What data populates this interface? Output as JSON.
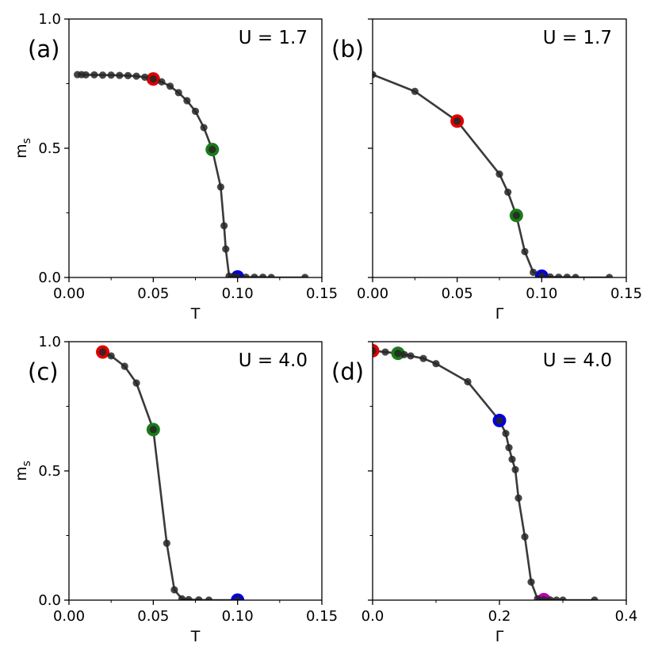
{
  "colors": {
    "line": "#3a3a3a",
    "marker": "#262626",
    "highlights": [
      "#dd0000",
      "#1a7a1a",
      "#0000dd",
      "#bb00bb"
    ]
  },
  "chart_data": [
    {
      "type": "line",
      "panel_label": "(a)",
      "param_label": "U = 1.7",
      "xlabel": "T",
      "ylabel": "m_s",
      "xlim": [
        0,
        0.15
      ],
      "ylim": [
        0,
        1.0
      ],
      "xticks": [
        "0.00",
        "0.05",
        "0.10",
        "0.15"
      ],
      "yticks": [
        "0.0",
        "0.5",
        "1.0"
      ],
      "x": [
        0.005,
        0.0075,
        0.01,
        0.015,
        0.02,
        0.025,
        0.03,
        0.035,
        0.04,
        0.045,
        0.05,
        0.055,
        0.06,
        0.065,
        0.07,
        0.075,
        0.08,
        0.085,
        0.09,
        0.092,
        0.093,
        0.095,
        0.0975,
        0.1,
        0.105,
        0.11,
        0.115,
        0.12,
        0.14
      ],
      "y": [
        0.785,
        0.785,
        0.784,
        0.784,
        0.783,
        0.783,
        0.782,
        0.781,
        0.779,
        0.775,
        0.768,
        0.757,
        0.74,
        0.715,
        0.684,
        0.643,
        0.58,
        0.495,
        0.35,
        0.2,
        0.11,
        0.005,
        0.003,
        0.002,
        0.001,
        0.001,
        0.001,
        0.0,
        0.0
      ],
      "highlights": [
        {
          "x": 0.05,
          "y": 0.768,
          "color": "#dd0000"
        },
        {
          "x": 0.085,
          "y": 0.495,
          "color": "#1a7a1a"
        },
        {
          "x": 0.1,
          "y": 0.002,
          "color": "#0000dd"
        }
      ]
    },
    {
      "type": "line",
      "panel_label": "(b)",
      "param_label": "U = 1.7",
      "xlabel": "Γ",
      "ylabel": "",
      "xlim": [
        0,
        0.15
      ],
      "ylim": [
        0,
        1.0
      ],
      "xticks": [
        "0.00",
        "0.05",
        "0.10",
        "0.15"
      ],
      "yticks": [],
      "x": [
        0.0,
        0.025,
        0.05,
        0.075,
        0.08,
        0.085,
        0.09,
        0.095,
        0.1,
        0.105,
        0.11,
        0.115,
        0.12,
        0.14
      ],
      "y": [
        0.785,
        0.72,
        0.605,
        0.4,
        0.33,
        0.24,
        0.1,
        0.02,
        0.005,
        0.002,
        0.001,
        0.001,
        0.0,
        0.0
      ],
      "highlights": [
        {
          "x": 0.05,
          "y": 0.605,
          "color": "#dd0000"
        },
        {
          "x": 0.085,
          "y": 0.24,
          "color": "#1a7a1a"
        },
        {
          "x": 0.1,
          "y": 0.005,
          "color": "#0000dd"
        }
      ]
    },
    {
      "type": "line",
      "panel_label": "(c)",
      "param_label": "U = 4.0",
      "xlabel": "T",
      "ylabel": "m_s",
      "xlim": [
        0,
        0.15
      ],
      "ylim": [
        0,
        1.0
      ],
      "xticks": [
        "0.00",
        "0.05",
        "0.10",
        "0.15"
      ],
      "yticks": [
        "0.0",
        "0.5",
        "1.0"
      ],
      "x": [
        0.02,
        0.025,
        0.033,
        0.04,
        0.05,
        0.058,
        0.0625,
        0.067,
        0.071,
        0.077,
        0.083,
        0.1
      ],
      "y": [
        0.96,
        0.945,
        0.905,
        0.84,
        0.66,
        0.22,
        0.04,
        0.005,
        0.002,
        0.001,
        0.0,
        0.0
      ],
      "highlights": [
        {
          "x": 0.02,
          "y": 0.96,
          "color": "#dd0000"
        },
        {
          "x": 0.05,
          "y": 0.66,
          "color": "#1a7a1a"
        },
        {
          "x": 0.1,
          "y": 0.0,
          "color": "#0000dd"
        }
      ]
    },
    {
      "type": "line",
      "panel_label": "(d)",
      "param_label": "U = 4.0",
      "xlabel": "Γ",
      "ylabel": "",
      "xlim": [
        0,
        0.4
      ],
      "ylim": [
        0,
        1.0
      ],
      "xticks": [
        "0.0",
        "0.2",
        "0.4"
      ],
      "yticks": [],
      "x": [
        0.0,
        0.02,
        0.04,
        0.05,
        0.06,
        0.08,
        0.1,
        0.15,
        0.2,
        0.21,
        0.215,
        0.22,
        0.225,
        0.23,
        0.24,
        0.25,
        0.26,
        0.27,
        0.28,
        0.29,
        0.3,
        0.35
      ],
      "y": [
        0.965,
        0.96,
        0.955,
        0.95,
        0.945,
        0.935,
        0.915,
        0.845,
        0.695,
        0.645,
        0.59,
        0.545,
        0.505,
        0.395,
        0.245,
        0.07,
        0.005,
        0.002,
        0.001,
        0.0,
        0.0,
        0.0
      ],
      "highlights": [
        {
          "x": 0.0,
          "y": 0.965,
          "color": "#dd0000"
        },
        {
          "x": 0.04,
          "y": 0.955,
          "color": "#1a7a1a"
        },
        {
          "x": 0.2,
          "y": 0.695,
          "color": "#0000dd"
        },
        {
          "x": 0.27,
          "y": 0.002,
          "color": "#bb00bb"
        }
      ]
    }
  ]
}
